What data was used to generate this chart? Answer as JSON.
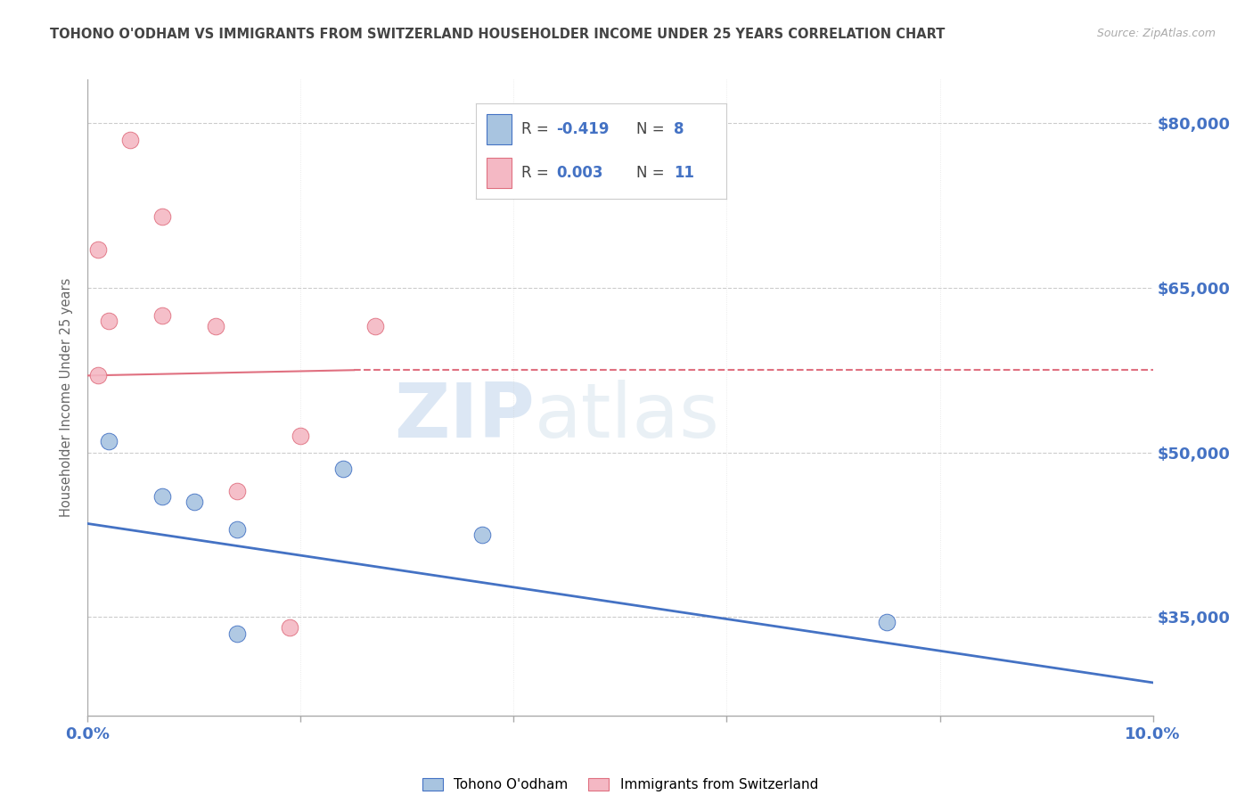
{
  "title": "TOHONO O'ODHAM VS IMMIGRANTS FROM SWITZERLAND HOUSEHOLDER INCOME UNDER 25 YEARS CORRELATION CHART",
  "source": "Source: ZipAtlas.com",
  "ylabel": "Householder Income Under 25 years",
  "xlim": [
    0.0,
    0.1
  ],
  "ylim": [
    26000,
    84000
  ],
  "yticks": [
    35000,
    50000,
    65000,
    80000
  ],
  "xticks": [
    0.0,
    0.02,
    0.04,
    0.06,
    0.08,
    0.1
  ],
  "yticklabels_right": [
    "$35,000",
    "$50,000",
    "$65,000",
    "$80,000"
  ],
  "watermark_zip": "ZIP",
  "watermark_atlas": "atlas",
  "blue_scatter_x": [
    0.007,
    0.01,
    0.002,
    0.014,
    0.037,
    0.075,
    0.024,
    0.014
  ],
  "blue_scatter_y": [
    46000,
    45500,
    51000,
    43000,
    42500,
    34500,
    48500,
    33500
  ],
  "pink_scatter_x": [
    0.004,
    0.001,
    0.007,
    0.007,
    0.02,
    0.027,
    0.001,
    0.012,
    0.019,
    0.002,
    0.014
  ],
  "pink_scatter_y": [
    78500,
    68500,
    71500,
    62500,
    51500,
    61500,
    57000,
    61500,
    34000,
    62000,
    46500
  ],
  "blue_line_x": [
    0.0,
    0.1
  ],
  "blue_line_y": [
    43500,
    29000
  ],
  "pink_line_x": [
    0.0,
    0.025,
    0.1
  ],
  "pink_line_y": [
    57000,
    57500,
    57500
  ],
  "blue_color": "#a8c4e0",
  "pink_color": "#f4b8c4",
  "blue_line_color": "#4472c4",
  "pink_line_color": "#e07080",
  "r_value_color": "#4472c4",
  "n_value_color": "#4472c4",
  "axis_label_color": "#4472c4",
  "grid_color": "#cccccc",
  "background_color": "#ffffff",
  "title_color": "#444444",
  "legend_blue_r": "-0.419",
  "legend_blue_n": "8",
  "legend_pink_r": "0.003",
  "legend_pink_n": "11"
}
